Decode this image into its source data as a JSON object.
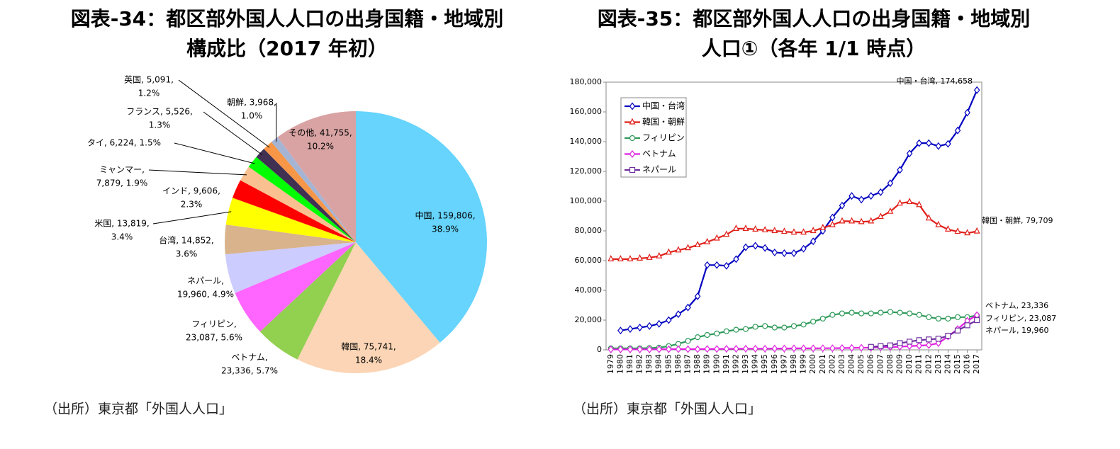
{
  "chart_data": [
    {
      "type": "pie",
      "title": [
        "図表-34：都区部外国人人口の出身国籍・地域別",
        "構成比（2017 年初）"
      ],
      "source": "（出所）東京都「外国人人口」",
      "categories": [
        "中国",
        "韓国",
        "ベトナム",
        "フィリピン",
        "ネパール",
        "台湾",
        "米国",
        "インド",
        "ミャンマー",
        "タイ",
        "フランス",
        "英国",
        "朝鮮",
        "その他"
      ],
      "values": [
        159806,
        75741,
        23336,
        23087,
        19960,
        14852,
        13819,
        9606,
        7879,
        6224,
        5526,
        5091,
        3968,
        41755
      ],
      "value_labels": [
        [
          "中国, 159,806,",
          "38.9%"
        ],
        [
          "韓国, 75,741,",
          "18.4%"
        ],
        [
          "ベトナム,",
          "23,336, 5.7%"
        ],
        [
          "フィリピン,",
          "23,087, 5.6%"
        ],
        [
          "ネパール,",
          "19,960, 4.9%"
        ],
        [
          "台湾, 14,852,",
          "3.6%"
        ],
        [
          "米国, 13,819,",
          "3.4%"
        ],
        [
          "インド, 9,606,",
          "2.3%"
        ],
        [
          "ミャンマー,",
          "7,879, 1.9%"
        ],
        [
          "タイ, 6,224, 1.5%"
        ],
        [
          "フランス, 5,526,",
          "1.3%"
        ],
        [
          "英国, 5,091,",
          "1.2%"
        ],
        [
          "朝鮮, 3,968,",
          "1.0%"
        ],
        [
          "その他, 41,755,",
          "10.2%"
        ]
      ],
      "colors": [
        "#66d4fc",
        "#fbd5b5",
        "#92d050",
        "#ff66ff",
        "#ccccff",
        "#d9b38c",
        "#ffff00",
        "#ff0000",
        "#fac090",
        "#00ff00",
        "#403152",
        "#f79646",
        "#a6b4d4",
        "#d9a3a3"
      ]
    },
    {
      "type": "line",
      "title": [
        "図表-35：都区部外国人人口の出身国籍・地域別",
        "人口①（各年 1/1 時点）"
      ],
      "source": "（出所）東京都「外国人人口」",
      "x": [
        1979,
        1980,
        1981,
        1982,
        1983,
        1984,
        1985,
        1986,
        1987,
        1988,
        1989,
        1990,
        1991,
        1992,
        1993,
        1994,
        1995,
        1996,
        1997,
        1998,
        1999,
        2000,
        2001,
        2002,
        2003,
        2004,
        2005,
        2006,
        2007,
        2008,
        2009,
        2010,
        2011,
        2012,
        2013,
        2014,
        2015,
        2016,
        2017
      ],
      "xlim": [
        1978.5,
        2017.5
      ],
      "ylim": [
        0,
        180000
      ],
      "yticks": [
        0,
        {
          "value": 20000,
          "label": "20,000"
        },
        {
          "value": 40000,
          "label": "40,000"
        },
        {
          "value": 60000,
          "label": "60,000"
        },
        {
          "value": 80000,
          "label": "80,000"
        },
        {
          "value": 100000,
          "label": "100,000"
        },
        {
          "value": 120000,
          "label": "120,000"
        },
        {
          "value": 140000,
          "label": "140,000"
        },
        {
          "value": 160000,
          "label": "160,000"
        },
        {
          "value": 180000,
          "label": "180,000"
        }
      ],
      "grid": false,
      "legend": "upper left",
      "series": [
        {
          "name": "中国・台湾",
          "color": "#0000c0",
          "marker": "diamond",
          "end_label": "中国・台湾, 174,658",
          "values": [
            null,
            13000,
            14000,
            15000,
            16000,
            17500,
            20000,
            24000,
            28500,
            36000,
            57000,
            57000,
            56500,
            61000,
            69000,
            70000,
            68500,
            65500,
            65000,
            65000,
            68000,
            73000,
            80000,
            89000,
            97000,
            103500,
            101000,
            103500,
            106000,
            112000,
            121000,
            132000,
            139000,
            139000,
            137000,
            138500,
            147500,
            159500,
            174658
          ]
        },
        {
          "name": "韓国・朝鮮",
          "color": "#e0201a",
          "marker": "triangle",
          "end_label": "韓国・朝鮮, 79,709",
          "values": [
            61000,
            61000,
            61000,
            61500,
            62000,
            63000,
            65500,
            67000,
            68500,
            70500,
            72500,
            75000,
            77500,
            81500,
            81500,
            81000,
            80500,
            80000,
            79500,
            79000,
            79000,
            80000,
            82000,
            84000,
            86500,
            86500,
            86000,
            86500,
            89500,
            93000,
            98500,
            99500,
            97500,
            88500,
            84000,
            81000,
            79500,
            78500,
            79709
          ]
        },
        {
          "name": "フィリピン",
          "color": "#2e9a5a",
          "marker": "circle",
          "end_label": "フィリピン, 23,087",
          "values": [
            1000,
            1000,
            1000,
            1000,
            1200,
            1500,
            2500,
            4000,
            6000,
            8500,
            10000,
            11000,
            12500,
            13500,
            14000,
            15500,
            16000,
            15000,
            15000,
            16000,
            17000,
            19000,
            21000,
            23500,
            24500,
            25000,
            24500,
            24500,
            25000,
            25500,
            25000,
            24500,
            23500,
            22000,
            21000,
            21000,
            22000,
            22000,
            23087
          ]
        },
        {
          "name": "ベトナム",
          "color": "#e020e0",
          "marker": "diamond",
          "end_label": "ベトナム, 23,336",
          "values": [
            300,
            300,
            300,
            300,
            300,
            400,
            400,
            500,
            500,
            500,
            600,
            600,
            700,
            700,
            800,
            800,
            800,
            900,
            900,
            1000,
            1000,
            1000,
            1100,
            1100,
            1200,
            1300,
            1400,
            1500,
            1700,
            1900,
            2100,
            2500,
            2800,
            3200,
            4500,
            9000,
            14000,
            19500,
            23336
          ]
        },
        {
          "name": "ネパール",
          "color": "#7030a0",
          "marker": "square",
          "end_label": "ネパール, 19,960",
          "values": [
            null,
            null,
            null,
            null,
            null,
            null,
            null,
            null,
            null,
            null,
            null,
            null,
            null,
            null,
            null,
            null,
            null,
            null,
            null,
            null,
            null,
            null,
            null,
            null,
            null,
            null,
            null,
            2000,
            2500,
            3000,
            4500,
            5500,
            6500,
            7000,
            7500,
            9500,
            13000,
            16500,
            19960
          ]
        }
      ]
    }
  ]
}
